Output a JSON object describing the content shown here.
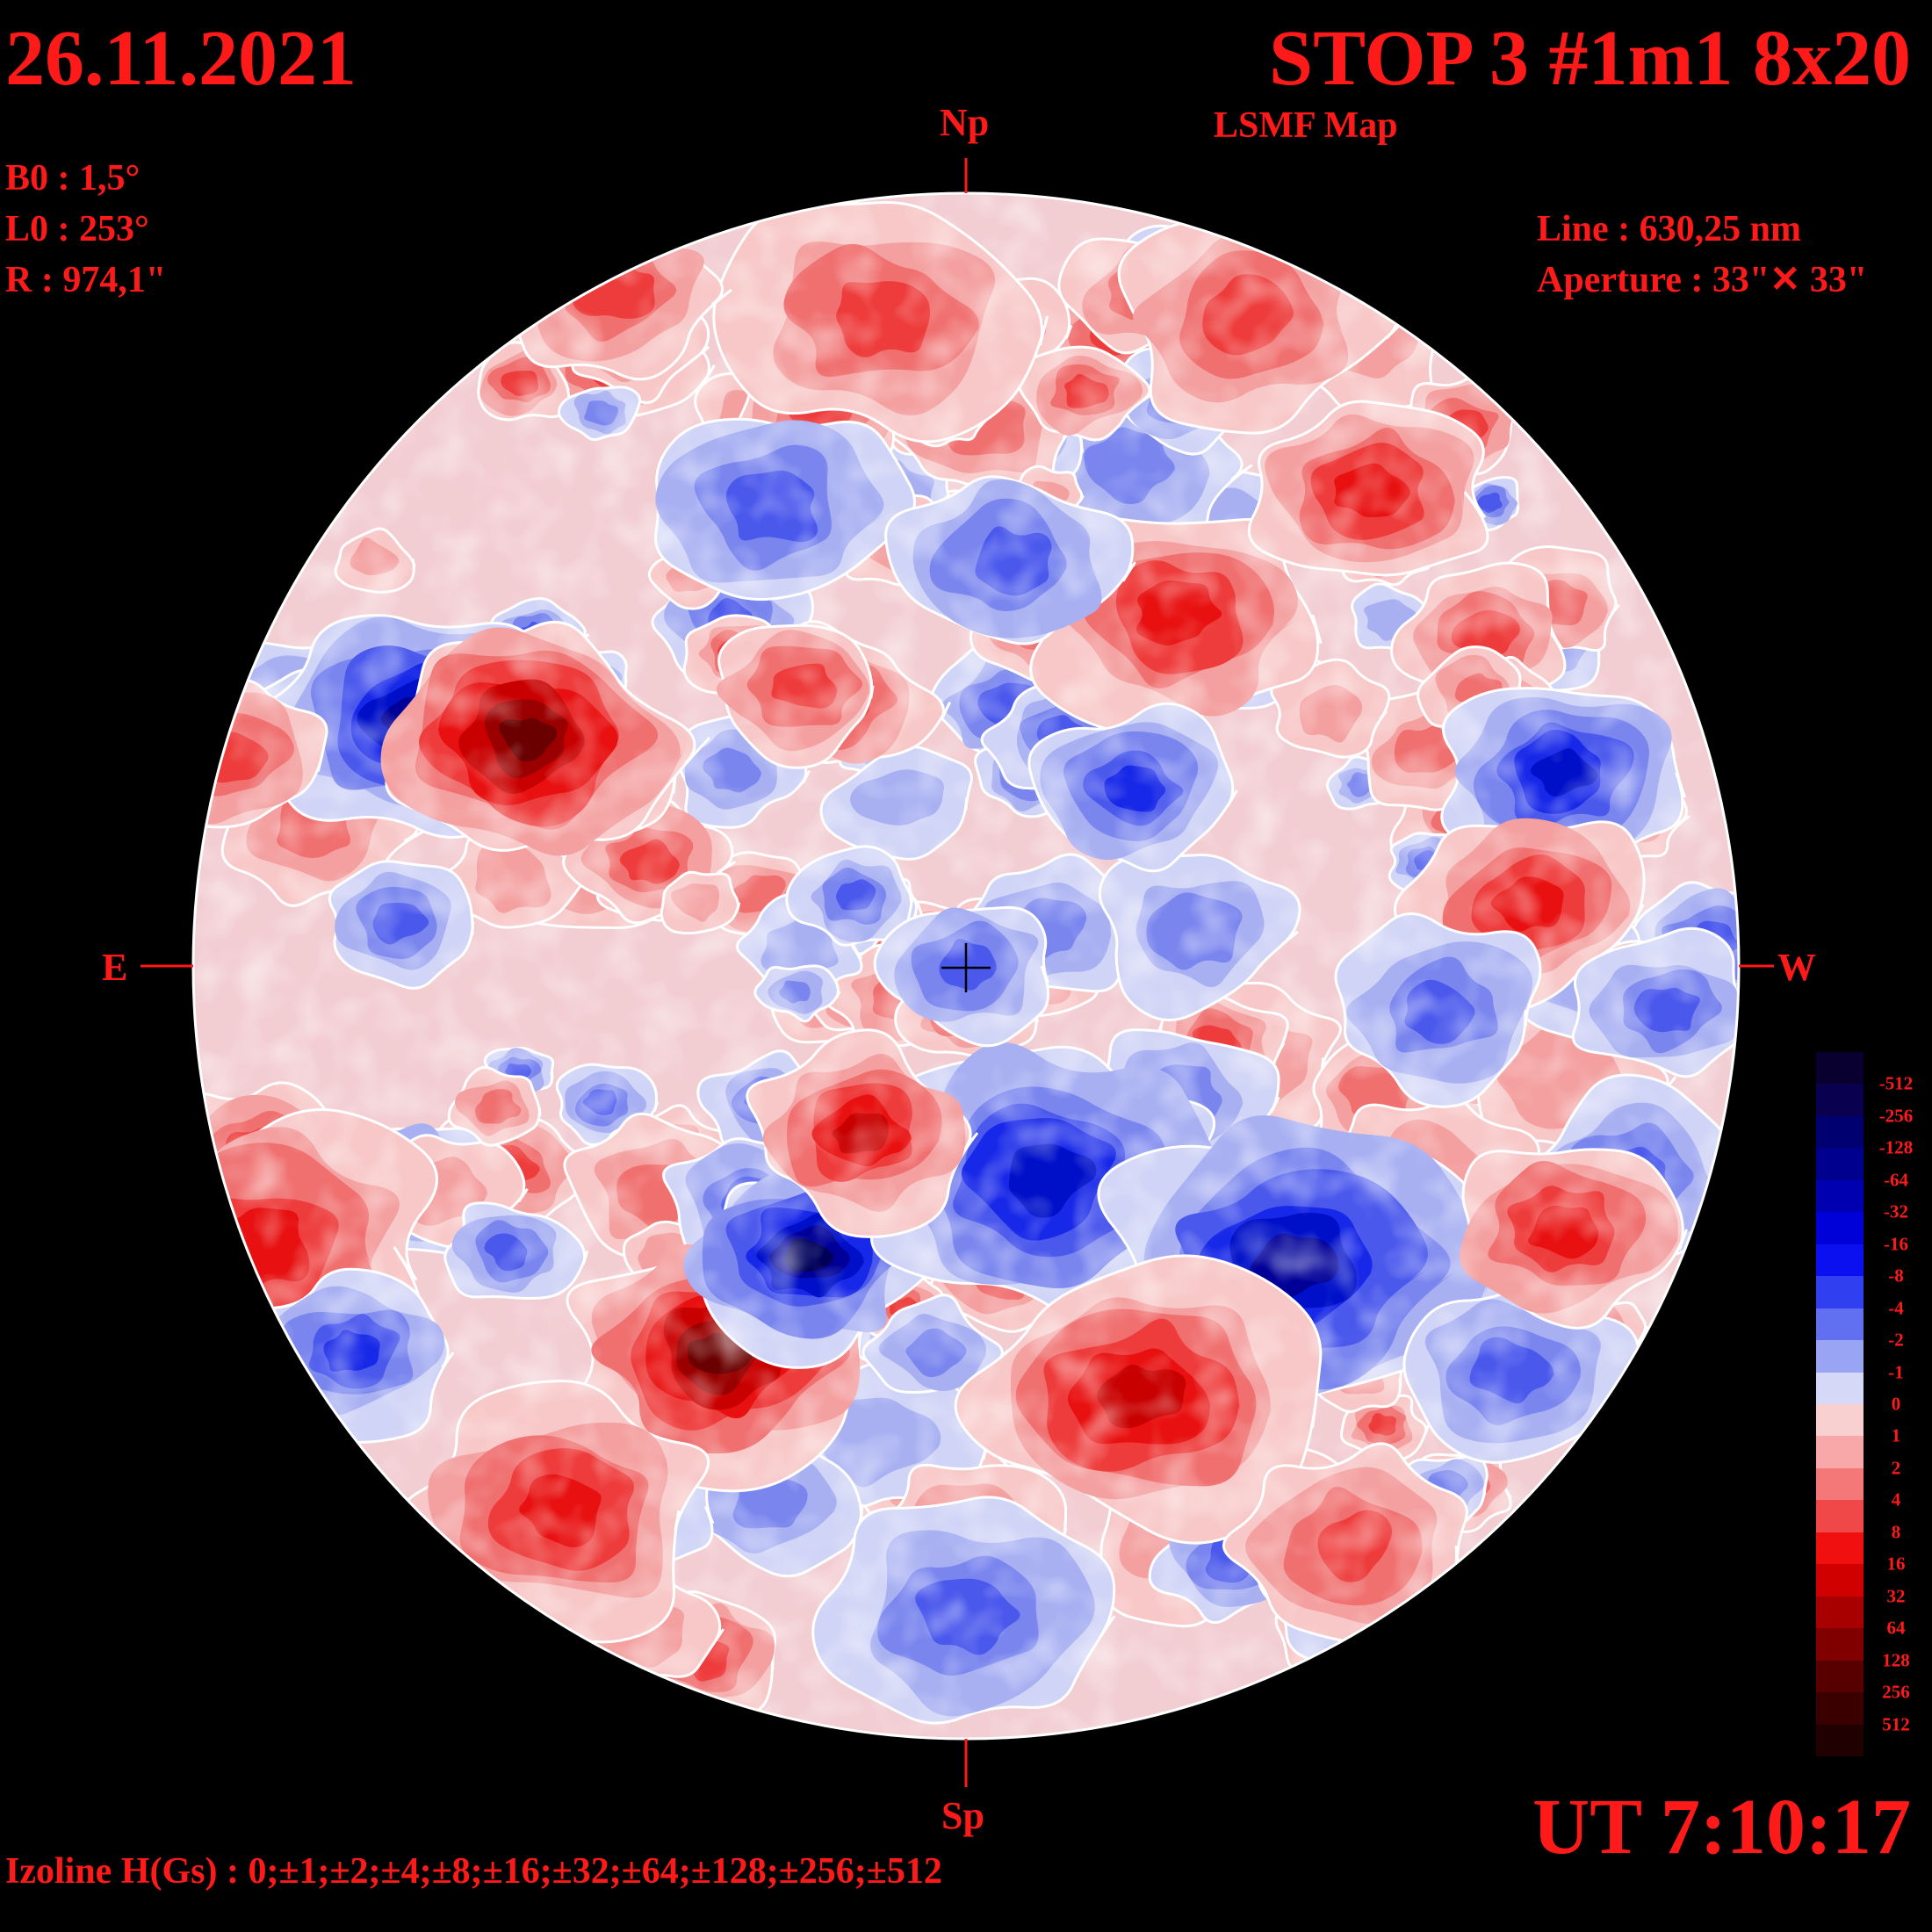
{
  "header": {
    "date": "26.11.2021",
    "title": "STOP 3 #1m1 8x20",
    "subtitle": "LSMF  Map"
  },
  "params": {
    "b0": "B0 : 1,5°",
    "l0": "L0 : 253°",
    "r": "R  : 974,1\""
  },
  "instrument": {
    "line": "Line :  630,25 nm",
    "aperture": "Aperture : 33\"✕ 33\""
  },
  "directions": {
    "north": "Np",
    "south": "Sp",
    "east": "E",
    "west": "W"
  },
  "footer": {
    "ut": "UT 7:10:17",
    "izoline": "Izoline H(Gs) : 0;±1;±2;±4;±8;±16;±32;±64;±128;±256;±512"
  },
  "legend": {
    "labels": [
      "-512",
      "-256",
      "-128",
      "-64",
      "-32",
      "-16",
      "-8",
      "-4",
      "-2",
      "-1",
      "0",
      "1",
      "2",
      "4",
      "8",
      "16",
      "32",
      "64",
      "128",
      "256",
      "512"
    ],
    "colors": [
      "#0a0030",
      "#0a0050",
      "#000070",
      "#00008f",
      "#0000b0",
      "#0000d8",
      "#0a10f0",
      "#3040f0",
      "#6070f0",
      "#9aa4f4",
      "#d6d8f8",
      "#f8d0d0",
      "#f8a8a8",
      "#f47878",
      "#f04848",
      "#f01010",
      "#d00000",
      "#a80000",
      "#800000",
      "#580000",
      "#3a0000",
      "#200000"
    ]
  },
  "colors": {
    "accent": "#ff1a1a",
    "positive": "#e81010",
    "negative": "#0010e0",
    "neutral": "#f4f4fa",
    "background": "#000000"
  }
}
